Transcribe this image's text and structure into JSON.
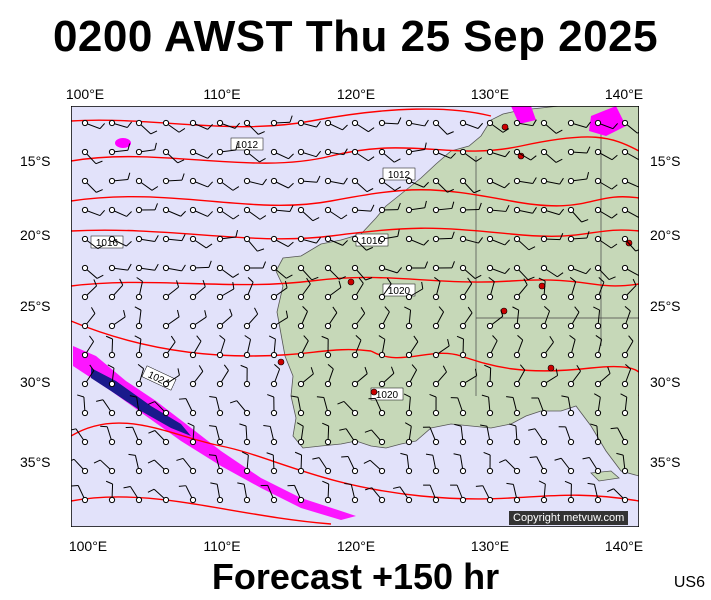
{
  "title": "0200 AWST Thu 25 Sep 2025",
  "footer": "Forecast +150 hr",
  "region_code": "US6",
  "copyright": "Copyright metvuw.com",
  "lon_labels": [
    "100°E",
    "110°E",
    "120°E",
    "130°E",
    "140°E"
  ],
  "lat_labels": [
    "15°S",
    "20°S",
    "25°S",
    "30°S",
    "35°S"
  ],
  "isobar_labels": [
    "1012",
    "1012",
    "1016",
    "1016",
    "1020",
    "1020",
    "1024"
  ],
  "colors": {
    "ocean": "#e2e2fa",
    "land": "#c6d8b8",
    "isobar": "#ff0000",
    "wind": "#000000",
    "rain_light": "#ff00ff",
    "rain_heavy": "#1a1a8c"
  }
}
